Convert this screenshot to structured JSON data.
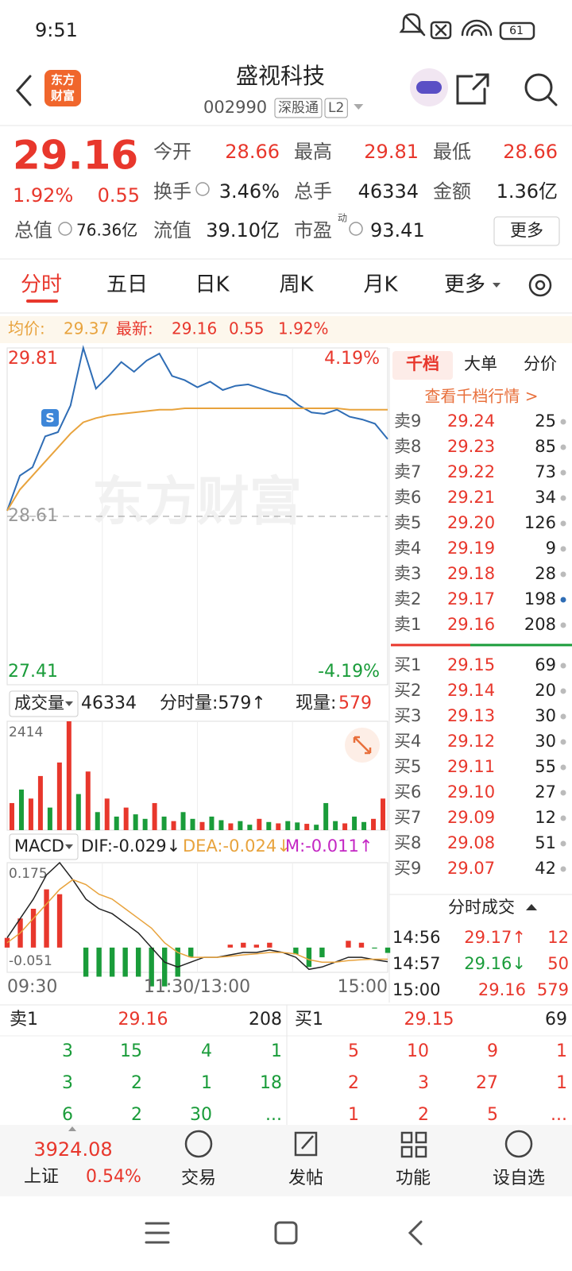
{
  "status_bar": {
    "time": "9:51",
    "battery": "61"
  },
  "header": {
    "logo": [
      "东方",
      "财富"
    ],
    "title": "盛视科技",
    "code": "002990",
    "tags": [
      "深股通",
      "L2"
    ]
  },
  "quote": {
    "price": "29.16",
    "change_pct": "1.92%",
    "change": "0.55",
    "fields": [
      {
        "label": "今开",
        "value": "28.66"
      },
      {
        "label": "最高",
        "value": "29.81"
      },
      {
        "label": "最低",
        "value": "28.66"
      },
      {
        "label": "换手",
        "value": "3.46%"
      },
      {
        "label": "总手",
        "value": "46334"
      },
      {
        "label": "金额",
        "value": "1.36亿"
      },
      {
        "label": "总值",
        "value": "76.36亿"
      },
      {
        "label": "流值",
        "value": "39.10亿"
      },
      {
        "label": "市盈",
        "value": "93.41",
        "sup": "动"
      }
    ],
    "more": "更多"
  },
  "tabs": [
    "分时",
    "五日",
    "日K",
    "周K",
    "月K",
    "更多"
  ],
  "info_bar": {
    "avg_label": "均价:",
    "avg": "29.37",
    "last_label": "最新:",
    "last": "29.16",
    "change": "0.55",
    "change_pct": "1.92%"
  },
  "watermark": "东方财富",
  "volume_bar": {
    "label": "成交量",
    "total": "46334",
    "tick_volume": "分时量:579↑",
    "current_label": "现量:",
    "current": "579"
  },
  "macd_bar": {
    "label": "MACD",
    "dif": "DIF:-0.029↓",
    "dea": "DEA:-0.024↓",
    "m": "M:-0.011↑"
  },
  "time_axis": [
    "09:30",
    "11:30/13:00",
    "15:00"
  ],
  "chart_data": [
    {
      "type": "line",
      "ylim": [
        27.41,
        29.81
      ],
      "yticks": [
        29.81,
        28.61,
        27.41
      ],
      "y2lim": [
        -4.19,
        4.19
      ],
      "y2ticks": [
        {
          "value": 4.19,
          "label": "4.19%"
        },
        {
          "value": -4.19,
          "label": "-4.19%"
        }
      ],
      "grid": true,
      "series": [
        {
          "color": "#2f6db5",
          "values": [
            28.65,
            28.9,
            28.96,
            29.18,
            29.21,
            29.4,
            29.81,
            29.52,
            29.61,
            29.71,
            29.64,
            29.72,
            29.77,
            29.61,
            29.58,
            29.53,
            29.57,
            29.51,
            29.54,
            29.55,
            29.52,
            29.49,
            29.47,
            29.4,
            29.35,
            29.34,
            29.37,
            29.32,
            29.3,
            29.27,
            29.16
          ]
        },
        {
          "color": "#e8a33d",
          "values": [
            28.65,
            28.8,
            28.9,
            29.0,
            29.1,
            29.2,
            29.28,
            29.31,
            29.33,
            29.34,
            29.35,
            29.36,
            29.37,
            29.37,
            29.38,
            29.38,
            29.38,
            29.38,
            29.38,
            29.38,
            29.38,
            29.38,
            29.38,
            29.38,
            29.38,
            29.38,
            29.38,
            29.37,
            29.37,
            29.37,
            29.37
          ]
        }
      ]
    },
    {
      "type": "bar",
      "ylim": [
        0,
        2414
      ],
      "yticks": [
        2414
      ],
      "values": [
        600,
        900,
        700,
        1200,
        500,
        1500,
        2414,
        800,
        1300,
        400,
        700,
        300,
        500,
        350,
        250,
        600,
        300,
        200,
        400,
        250,
        180,
        300,
        220,
        150,
        200,
        120,
        250,
        180,
        150,
        200,
        170,
        140,
        120,
        600,
        200,
        150,
        300,
        180,
        250,
        700
      ],
      "colors": [
        "#e8372c",
        "#1a9c3a",
        "#e8372c",
        "#e8372c",
        "#1a9c3a",
        "#e8372c",
        "#e8372c",
        "#1a9c3a",
        "#e8372c",
        "#1a9c3a",
        "#e8372c",
        "#1a9c3a",
        "#e8372c",
        "#1a9c3a",
        "#1a9c3a",
        "#e8372c",
        "#1a9c3a",
        "#e8372c",
        "#1a9c3a",
        "#1a9c3a",
        "#e8372c",
        "#1a9c3a",
        "#1a9c3a",
        "#e8372c",
        "#1a9c3a",
        "#1a9c3a",
        "#e8372c",
        "#1a9c3a",
        "#e8372c",
        "#1a9c3a",
        "#1a9c3a",
        "#e8372c",
        "#1a9c3a",
        "#1a9c3a",
        "#1a9c3a",
        "#e8372c",
        "#1a9c3a",
        "#1a9c3a",
        "#e8372c",
        "#e8372c"
      ]
    },
    {
      "type": "macd",
      "ylim": [
        -0.051,
        0.175
      ],
      "yticks": [
        0.175,
        -0.051
      ],
      "series": [
        {
          "color": "#222222",
          "values": [
            0.02,
            0.06,
            0.1,
            0.15,
            0.175,
            0.14,
            0.1,
            0.08,
            0.07,
            0.05,
            0.03,
            0.0,
            -0.03,
            -0.04,
            -0.03,
            -0.02,
            -0.02,
            -0.015,
            -0.01,
            -0.01,
            -0.005,
            -0.01,
            -0.02,
            -0.045,
            -0.04,
            -0.03,
            -0.02,
            -0.02,
            -0.025,
            -0.029
          ]
        },
        {
          "color": "#e8a33d",
          "values": [
            0.01,
            0.03,
            0.06,
            0.09,
            0.12,
            0.14,
            0.13,
            0.11,
            0.1,
            0.08,
            0.06,
            0.04,
            0.01,
            -0.01,
            -0.02,
            -0.02,
            -0.02,
            -0.018,
            -0.015,
            -0.013,
            -0.01,
            -0.01,
            -0.013,
            -0.025,
            -0.03,
            -0.03,
            -0.027,
            -0.025,
            -0.024,
            -0.024
          ]
        }
      ],
      "bars": [
        0.02,
        0.06,
        0.08,
        0.12,
        0.11,
        0.0,
        -0.06,
        -0.06,
        -0.06,
        -0.06,
        -0.06,
        -0.08,
        -0.08,
        -0.06,
        -0.02,
        0.0,
        0.0,
        0.006,
        0.01,
        0.006,
        0.01,
        0.0,
        -0.014,
        -0.04,
        -0.02,
        0.0,
        0.014,
        0.01,
        -0.002,
        -0.011
      ],
      "bar_colors": [
        "#e8372c",
        "#1a9c3a"
      ]
    }
  ],
  "order_book": {
    "tabs": [
      "千档",
      "大单",
      "分价"
    ],
    "link": "查看千档行情 >",
    "asks": [
      [
        "卖9",
        "29.24",
        "25"
      ],
      [
        "卖8",
        "29.23",
        "85"
      ],
      [
        "卖7",
        "29.22",
        "73"
      ],
      [
        "卖6",
        "29.21",
        "34"
      ],
      [
        "卖5",
        "29.20",
        "126"
      ],
      [
        "卖4",
        "29.19",
        "9"
      ],
      [
        "卖3",
        "29.18",
        "28"
      ],
      [
        "卖2",
        "29.17",
        "198"
      ],
      [
        "卖1",
        "29.16",
        "208"
      ]
    ],
    "bids": [
      [
        "买1",
        "29.15",
        "69"
      ],
      [
        "买2",
        "29.14",
        "20"
      ],
      [
        "买3",
        "29.13",
        "30"
      ],
      [
        "买4",
        "29.12",
        "30"
      ],
      [
        "买5",
        "29.11",
        "55"
      ],
      [
        "买6",
        "29.10",
        "27"
      ],
      [
        "买7",
        "29.09",
        "12"
      ],
      [
        "买8",
        "29.08",
        "51"
      ],
      [
        "买9",
        "29.07",
        "42"
      ]
    ]
  },
  "trades": {
    "title": "分时成交",
    "rows": [
      [
        "14:56",
        "29.17↑",
        "12"
      ],
      [
        "14:57",
        "29.16↓",
        "50"
      ],
      [
        "15:00",
        "29.16",
        "579"
      ]
    ]
  },
  "level_panel": {
    "ask": [
      "卖1",
      "29.16",
      "208"
    ],
    "bid": [
      "买1",
      "29.15",
      "69"
    ],
    "ask_rows": [
      [
        "3",
        "15",
        "4",
        "1"
      ],
      [
        "3",
        "2",
        "1",
        "18"
      ],
      [
        "6",
        "2",
        "30",
        "..."
      ]
    ],
    "bid_rows": [
      [
        "5",
        "10",
        "9",
        "1"
      ],
      [
        "2",
        "3",
        "27",
        "1"
      ],
      [
        "1",
        "2",
        "5",
        "..."
      ]
    ]
  },
  "bottom_nav": {
    "index_value": "3924.08",
    "index_name": "上证",
    "index_pct": "0.54%",
    "items": [
      "交易",
      "发帖",
      "功能",
      "设自选"
    ]
  }
}
